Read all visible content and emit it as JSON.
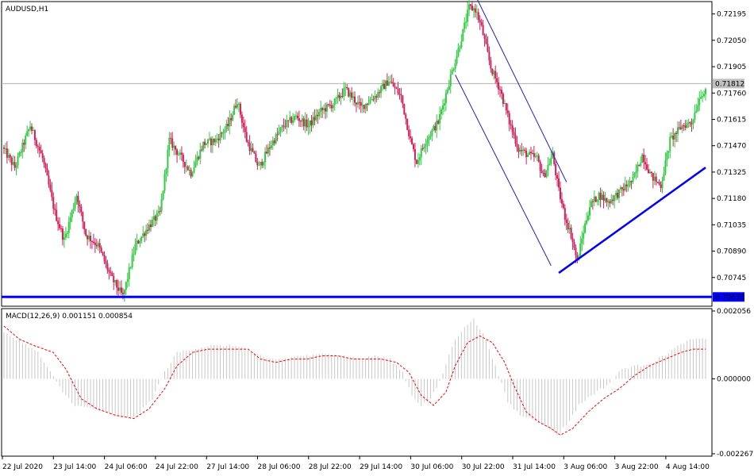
{
  "chart_data": {
    "type": "candlestick",
    "title": "AUDUSD,H1",
    "colors": {
      "bull": "#2ecc40",
      "bear": "#d21f5a",
      "trendline": "#0000ff",
      "channel": "#1f1fd0",
      "histogram": "#c8c8c8",
      "signal": "#ff0000",
      "grid_frame": "#000000",
      "price_marker_bg": "#c0c0c0",
      "support_label_bg": "#0000ff"
    },
    "price_axis": {
      "range": [
        0.706,
        0.7225
      ],
      "ticks": [
        "0.72195",
        "0.72050",
        "0.71905",
        "0.71760",
        "0.71615",
        "0.71470",
        "0.71325",
        "0.71180",
        "0.71035",
        "0.70890",
        "0.70745"
      ]
    },
    "current_price": {
      "value": 0.71812,
      "label": "0.71812"
    },
    "support_level": {
      "value": 0.70638,
      "label": "0.70638"
    },
    "x_labels": [
      "22 Jul 2020",
      "23 Jul 14:00",
      "24 Jul 06:00",
      "24 Jul 22:00",
      "27 Jul 14:00",
      "28 Jul 06:00",
      "28 Jul 22:00",
      "29 Jul 14:00",
      "30 Jul 06:00",
      "30 Jul 22:00",
      "31 Jul 14:00",
      "3 Aug 06:00",
      "3 Aug 22:00",
      "4 Aug 14:00"
    ],
    "price_path": [
      [
        0,
        0.7146
      ],
      [
        8,
        0.7135
      ],
      [
        18,
        0.7158
      ],
      [
        26,
        0.714
      ],
      [
        34,
        0.711
      ],
      [
        40,
        0.7095
      ],
      [
        48,
        0.712
      ],
      [
        54,
        0.7098
      ],
      [
        62,
        0.7092
      ],
      [
        70,
        0.7075
      ],
      [
        78,
        0.7064
      ],
      [
        86,
        0.7092
      ],
      [
        94,
        0.7102
      ],
      [
        102,
        0.711
      ],
      [
        108,
        0.715
      ],
      [
        116,
        0.714
      ],
      [
        122,
        0.7132
      ],
      [
        130,
        0.7148
      ],
      [
        138,
        0.715
      ],
      [
        146,
        0.7158
      ],
      [
        152,
        0.7172
      ],
      [
        158,
        0.715
      ],
      [
        166,
        0.7135
      ],
      [
        174,
        0.7148
      ],
      [
        182,
        0.7158
      ],
      [
        190,
        0.7163
      ],
      [
        198,
        0.7158
      ],
      [
        206,
        0.7166
      ],
      [
        214,
        0.717
      ],
      [
        222,
        0.7178
      ],
      [
        232,
        0.7168
      ],
      [
        242,
        0.7175
      ],
      [
        250,
        0.7183
      ],
      [
        258,
        0.7174
      ],
      [
        264,
        0.715
      ],
      [
        268,
        0.7138
      ],
      [
        274,
        0.715
      ],
      [
        282,
        0.716
      ],
      [
        290,
        0.7185
      ],
      [
        296,
        0.7203
      ],
      [
        302,
        0.7223
      ],
      [
        306,
        0.7222
      ],
      [
        310,
        0.7212
      ],
      [
        316,
        0.719
      ],
      [
        322,
        0.7178
      ],
      [
        328,
        0.716
      ],
      [
        334,
        0.7145
      ],
      [
        340,
        0.7142
      ],
      [
        346,
        0.714
      ],
      [
        350,
        0.713
      ],
      [
        356,
        0.7142
      ],
      [
        360,
        0.7122
      ],
      [
        364,
        0.7108
      ],
      [
        368,
        0.7098
      ],
      [
        372,
        0.7083
      ],
      [
        376,
        0.71
      ],
      [
        380,
        0.7114
      ],
      [
        386,
        0.712
      ],
      [
        392,
        0.7116
      ],
      [
        400,
        0.7122
      ],
      [
        408,
        0.7128
      ],
      [
        414,
        0.7142
      ],
      [
        420,
        0.713
      ],
      [
        426,
        0.7125
      ],
      [
        432,
        0.715
      ],
      [
        440,
        0.7158
      ],
      [
        446,
        0.716
      ],
      [
        452,
        0.7176
      ]
    ],
    "drawings": {
      "channel_upper": [
        [
          0.7228,
          306
        ],
        [
          0.7127,
          364
        ]
      ],
      "channel_lower": [
        [
          0.7186,
          292
        ],
        [
          0.7081,
          354
        ]
      ],
      "uptrend_line": [
        [
          0.7077,
          359
        ],
        [
          0.7135,
          454
        ]
      ]
    },
    "macd": {
      "label": "MACD(12,26,9) 0.001151 0.000854",
      "ticks": [
        "0.002056",
        "0.000000",
        "-0.002267"
      ],
      "range": [
        -0.002267,
        0.002056
      ],
      "histogram": [
        [
          0,
          0.0014
        ],
        [
          12,
          0.0011
        ],
        [
          22,
          0.0008
        ],
        [
          30,
          0.0002
        ],
        [
          38,
          -0.0004
        ],
        [
          46,
          -0.0008
        ],
        [
          56,
          -0.0009
        ],
        [
          66,
          -0.001
        ],
        [
          76,
          -0.0012
        ],
        [
          86,
          -0.0011
        ],
        [
          96,
          -0.0006
        ],
        [
          104,
          0.0002
        ],
        [
          112,
          0.0008
        ],
        [
          122,
          0.0009
        ],
        [
          132,
          0.001
        ],
        [
          142,
          0.001
        ],
        [
          152,
          0.001
        ],
        [
          160,
          0.0008
        ],
        [
          170,
          0.0006
        ],
        [
          180,
          0.0006
        ],
        [
          190,
          0.0007
        ],
        [
          200,
          0.0007
        ],
        [
          210,
          0.0008
        ],
        [
          220,
          0.0007
        ],
        [
          232,
          0.0006
        ],
        [
          240,
          0.0007
        ],
        [
          250,
          0.0006
        ],
        [
          258,
          0.0002
        ],
        [
          264,
          -0.0005
        ],
        [
          270,
          -0.0008
        ],
        [
          276,
          -0.0006
        ],
        [
          282,
          -0.0001
        ],
        [
          290,
          0.001
        ],
        [
          298,
          0.0016
        ],
        [
          304,
          0.0018
        ],
        [
          312,
          0.0012
        ],
        [
          320,
          0.0001
        ],
        [
          326,
          -0.0007
        ],
        [
          334,
          -0.0011
        ],
        [
          342,
          -0.0012
        ],
        [
          350,
          -0.0014
        ],
        [
          358,
          -0.0017
        ],
        [
          364,
          -0.0014
        ],
        [
          372,
          -0.0008
        ],
        [
          380,
          -0.0005
        ],
        [
          390,
          -0.0002
        ],
        [
          400,
          0.0003
        ],
        [
          410,
          0.0004
        ],
        [
          420,
          0.0005
        ],
        [
          430,
          0.0008
        ],
        [
          440,
          0.0011
        ],
        [
          446,
          0.0012
        ]
      ],
      "signal": [
        [
          0,
          0.0016
        ],
        [
          10,
          0.0012
        ],
        [
          20,
          0.001
        ],
        [
          32,
          0.0008
        ],
        [
          40,
          0.0003
        ],
        [
          50,
          -0.0006
        ],
        [
          60,
          -0.0009
        ],
        [
          72,
          -0.0011
        ],
        [
          84,
          -0.0012
        ],
        [
          94,
          -0.0009
        ],
        [
          104,
          -0.0003
        ],
        [
          112,
          0.0004
        ],
        [
          122,
          0.0008
        ],
        [
          132,
          0.0009
        ],
        [
          142,
          0.0009
        ],
        [
          150,
          0.0009
        ],
        [
          158,
          0.0009
        ],
        [
          166,
          0.0006
        ],
        [
          176,
          0.0005
        ],
        [
          186,
          0.0006
        ],
        [
          196,
          0.0006
        ],
        [
          206,
          0.0007
        ],
        [
          216,
          0.0007
        ],
        [
          226,
          0.0006
        ],
        [
          236,
          0.0006
        ],
        [
          244,
          0.0006
        ],
        [
          254,
          0.0005
        ],
        [
          262,
          0.0002
        ],
        [
          270,
          -0.0005
        ],
        [
          278,
          -0.0008
        ],
        [
          286,
          -0.0004
        ],
        [
          292,
          0.0004
        ],
        [
          300,
          0.0011
        ],
        [
          308,
          0.0013
        ],
        [
          316,
          0.0011
        ],
        [
          324,
          0.0005
        ],
        [
          330,
          -0.0002
        ],
        [
          338,
          -0.001
        ],
        [
          346,
          -0.0013
        ],
        [
          354,
          -0.0015
        ],
        [
          360,
          -0.0017
        ],
        [
          368,
          -0.0015
        ],
        [
          378,
          -0.001
        ],
        [
          388,
          -0.0006
        ],
        [
          398,
          -0.0003
        ],
        [
          408,
          0.0001
        ],
        [
          418,
          0.0004
        ],
        [
          428,
          0.0006
        ],
        [
          438,
          0.0008
        ],
        [
          446,
          0.0009
        ]
      ]
    }
  }
}
